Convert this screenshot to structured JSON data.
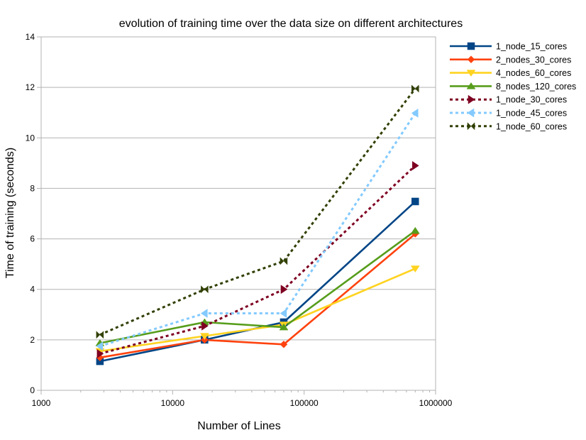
{
  "chart_data": {
    "type": "line",
    "title": "evolution of training time over the data size on different architectures",
    "xlabel": "Number of Lines",
    "ylabel": "Time of training (seconds)",
    "x_scale": "log",
    "xlim": [
      1000,
      1000000
    ],
    "ylim": [
      0,
      14
    ],
    "x_ticks": [
      1000,
      10000,
      100000,
      1000000
    ],
    "x_tick_labels": [
      "1000",
      "10000",
      "100000",
      "1000000"
    ],
    "y_ticks": [
      0,
      2,
      4,
      6,
      8,
      10,
      12,
      14
    ],
    "y_tick_labels": [
      "0",
      "2",
      "4",
      "6",
      "8",
      "10",
      "12",
      "14"
    ],
    "grid": "horizontal",
    "legend_position": "right",
    "x": [
      2800,
      17500,
      70000,
      700000
    ],
    "series": [
      {
        "name": "1_node_15_cores",
        "values": [
          1.15,
          2.0,
          2.7,
          7.48
        ],
        "color": "#004586",
        "style": "solid",
        "marker": "square"
      },
      {
        "name": "2_nodes_30_cores",
        "values": [
          1.3,
          2.0,
          1.82,
          6.2
        ],
        "color": "#ff420e",
        "style": "solid",
        "marker": "diamond"
      },
      {
        "name": "4_nodes_60_cores",
        "values": [
          1.55,
          2.15,
          2.6,
          4.82
        ],
        "color": "#ffd320",
        "style": "solid",
        "marker": "triangle-down"
      },
      {
        "name": "8_nodes_120_cores",
        "values": [
          1.87,
          2.7,
          2.5,
          6.32
        ],
        "color": "#579d1c",
        "style": "solid",
        "marker": "triangle-up"
      },
      {
        "name": "1_node_30_cores",
        "values": [
          1.45,
          2.55,
          4.0,
          8.9
        ],
        "color": "#7e0021",
        "style": "dashed",
        "marker": "triangle-right"
      },
      {
        "name": "1_node_45_cores",
        "values": [
          1.75,
          3.05,
          3.05,
          10.98
        ],
        "color": "#83caff",
        "style": "dashed",
        "marker": "triangle-left"
      },
      {
        "name": "1_node_60_cores",
        "values": [
          2.2,
          4.0,
          5.12,
          11.95
        ],
        "color": "#314004",
        "style": "dashed",
        "marker": "bowtie"
      }
    ]
  }
}
